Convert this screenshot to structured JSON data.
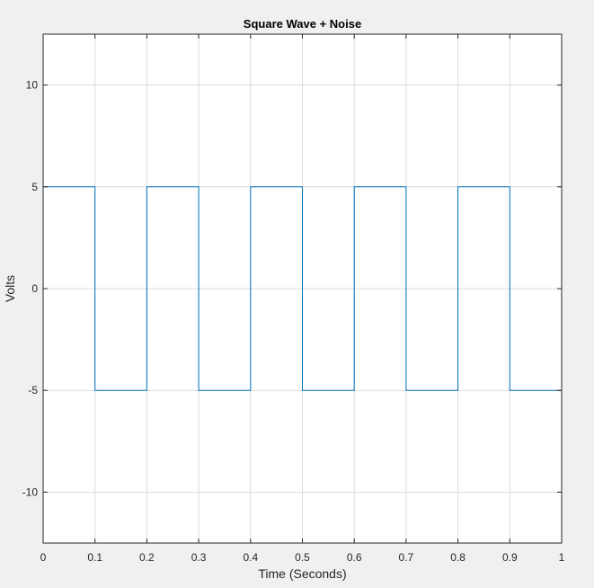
{
  "chart_data": {
    "type": "line",
    "title": "Square Wave + Noise",
    "xlabel": "Time (Seconds)",
    "ylabel": "Volts",
    "xlim": [
      0,
      1
    ],
    "ylim": [
      -12.5,
      12.5
    ],
    "x_ticks": [
      0,
      0.1,
      0.2,
      0.3,
      0.4,
      0.5,
      0.6,
      0.7,
      0.8,
      0.9,
      1
    ],
    "x_tick_labels": [
      "0",
      "0.1",
      "0.2",
      "0.3",
      "0.4",
      "0.5",
      "0.6",
      "0.7",
      "0.8",
      "0.9",
      "1"
    ],
    "y_ticks": [
      -10,
      -5,
      0,
      5,
      10
    ],
    "y_tick_labels": [
      "-10",
      "-5",
      "0",
      "5",
      "10"
    ],
    "grid": true,
    "series": [
      {
        "color": "#0072bd",
        "x": [
          0,
          0.1,
          0.1,
          0.2,
          0.2,
          0.3,
          0.3,
          0.4,
          0.4,
          0.5,
          0.5,
          0.6,
          0.6,
          0.7,
          0.7,
          0.8,
          0.8,
          0.9,
          0.9,
          1,
          1
        ],
        "y": [
          5,
          5,
          -5,
          -5,
          5,
          5,
          -5,
          -5,
          5,
          5,
          -5,
          -5,
          5,
          5,
          -5,
          -5,
          5,
          5,
          -5,
          -5,
          5
        ]
      }
    ]
  }
}
